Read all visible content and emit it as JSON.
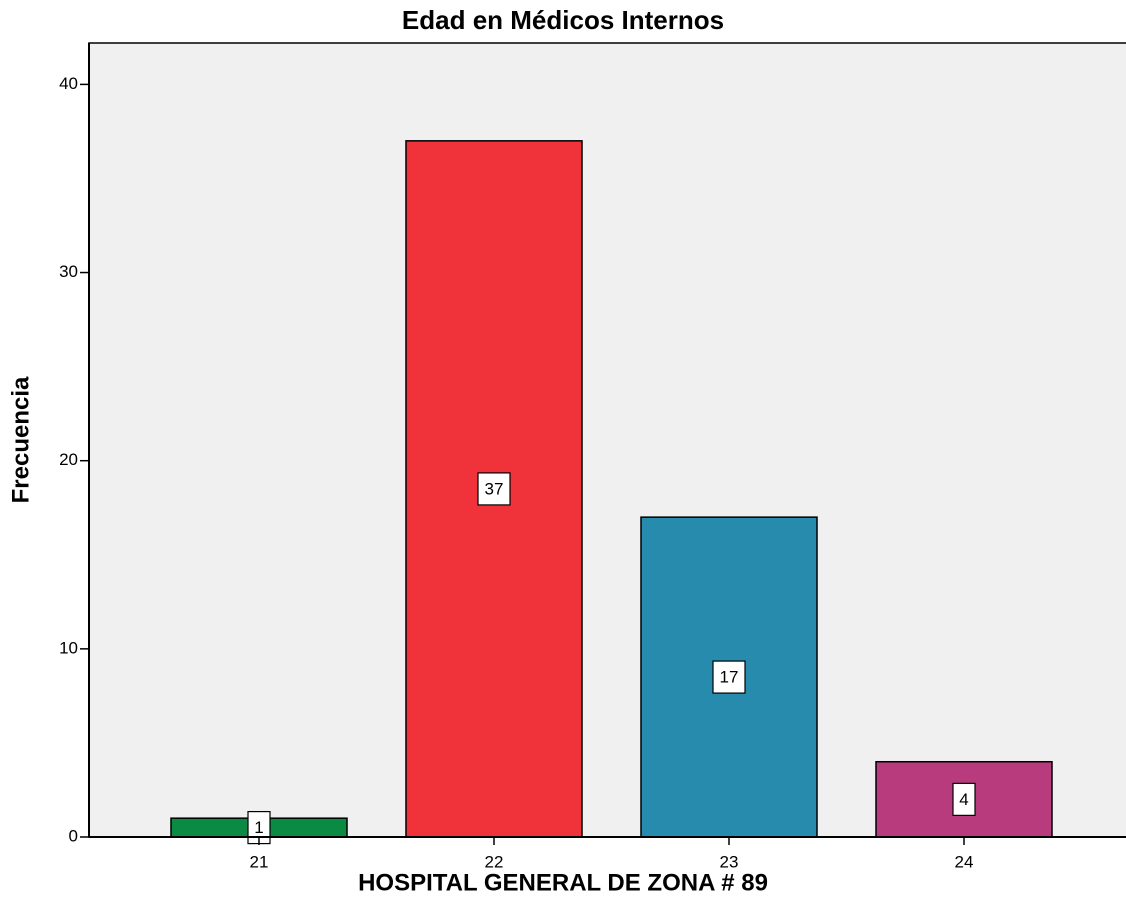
{
  "chart_data": {
    "type": "bar",
    "title": "Edad en Médicos Internos",
    "x_label": "HOSPITAL GENERAL DE ZONA # 89",
    "y_label": "Frecuencia",
    "categories": [
      "21",
      "22",
      "23",
      "24"
    ],
    "values": [
      1,
      37,
      17,
      4
    ],
    "colors": [
      "#0b8a44",
      "#f0333a",
      "#268bad",
      "#b83b7e"
    ],
    "ylim": [
      0,
      42.2
    ],
    "yticks": [
      0,
      10,
      20,
      30,
      40
    ]
  }
}
